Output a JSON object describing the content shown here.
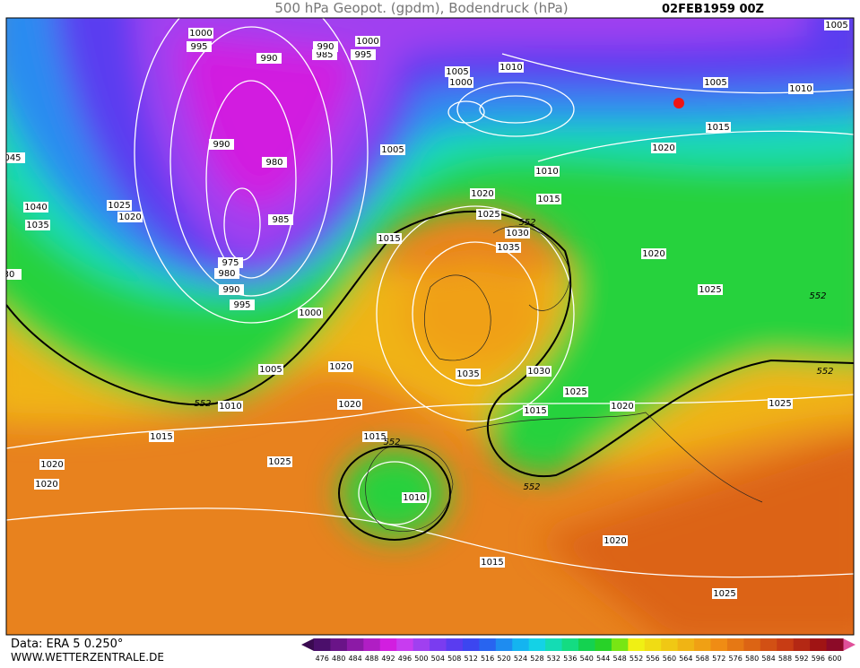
{
  "header": {
    "title": "500 hPa Geopot. (gpdm), Bodendruck (hPa)",
    "date": "02FEB1959 00Z"
  },
  "isobar_labels": [
    "1000",
    "995",
    "990",
    "985",
    "990",
    "1000",
    "995",
    "1005",
    "1000",
    "1010",
    "1005",
    "1005",
    "1010",
    "1015",
    "1020",
    "1005",
    "990",
    "980",
    "985",
    "975",
    "980",
    "990",
    "995",
    "1000",
    "1005",
    "1010",
    "552",
    "1015",
    "1020",
    "1020",
    "1025",
    "1020",
    "1020",
    "1015",
    "552",
    "1010",
    "1015",
    "1020",
    "1025",
    "1025",
    "552",
    "1025",
    "1020",
    "552",
    "1015",
    "1010",
    "1020",
    "1025",
    "552",
    "1030",
    "1035",
    "1015",
    "1040",
    "1035",
    "1025",
    "1020",
    "045",
    "30",
    "1035",
    "1030",
    "1025",
    "1015",
    "1020",
    "552"
  ],
  "footer": {
    "data_source": "Data: ERA 5 0.250°",
    "website": "WWW.WETTERZENTRALE.DE"
  },
  "colorbar": {
    "labels": [
      476,
      480,
      484,
      488,
      492,
      496,
      500,
      504,
      508,
      512,
      516,
      520,
      524,
      528,
      532,
      536,
      540,
      544,
      548,
      552,
      556,
      560,
      564,
      568,
      572,
      576,
      580,
      584,
      588,
      592,
      596,
      600
    ],
    "colors": [
      "#4b0f6b",
      "#6a1488",
      "#8c1aa6",
      "#b01ec4",
      "#d21ee0",
      "#c83cf0",
      "#a040f0",
      "#7a3cf0",
      "#5a3cf0",
      "#3c46f0",
      "#2864f0",
      "#1e8cf0",
      "#14b4f0",
      "#14d2e6",
      "#14dcb4",
      "#14dc82",
      "#14d250",
      "#28d228",
      "#78e614",
      "#f0f014",
      "#f0dc14",
      "#f0c814",
      "#f0b414",
      "#f0a014",
      "#f08c14",
      "#e67814",
      "#dc6414",
      "#d25014",
      "#c83c14",
      "#b42814",
      "#a01414",
      "#8c0a28"
    ]
  }
}
